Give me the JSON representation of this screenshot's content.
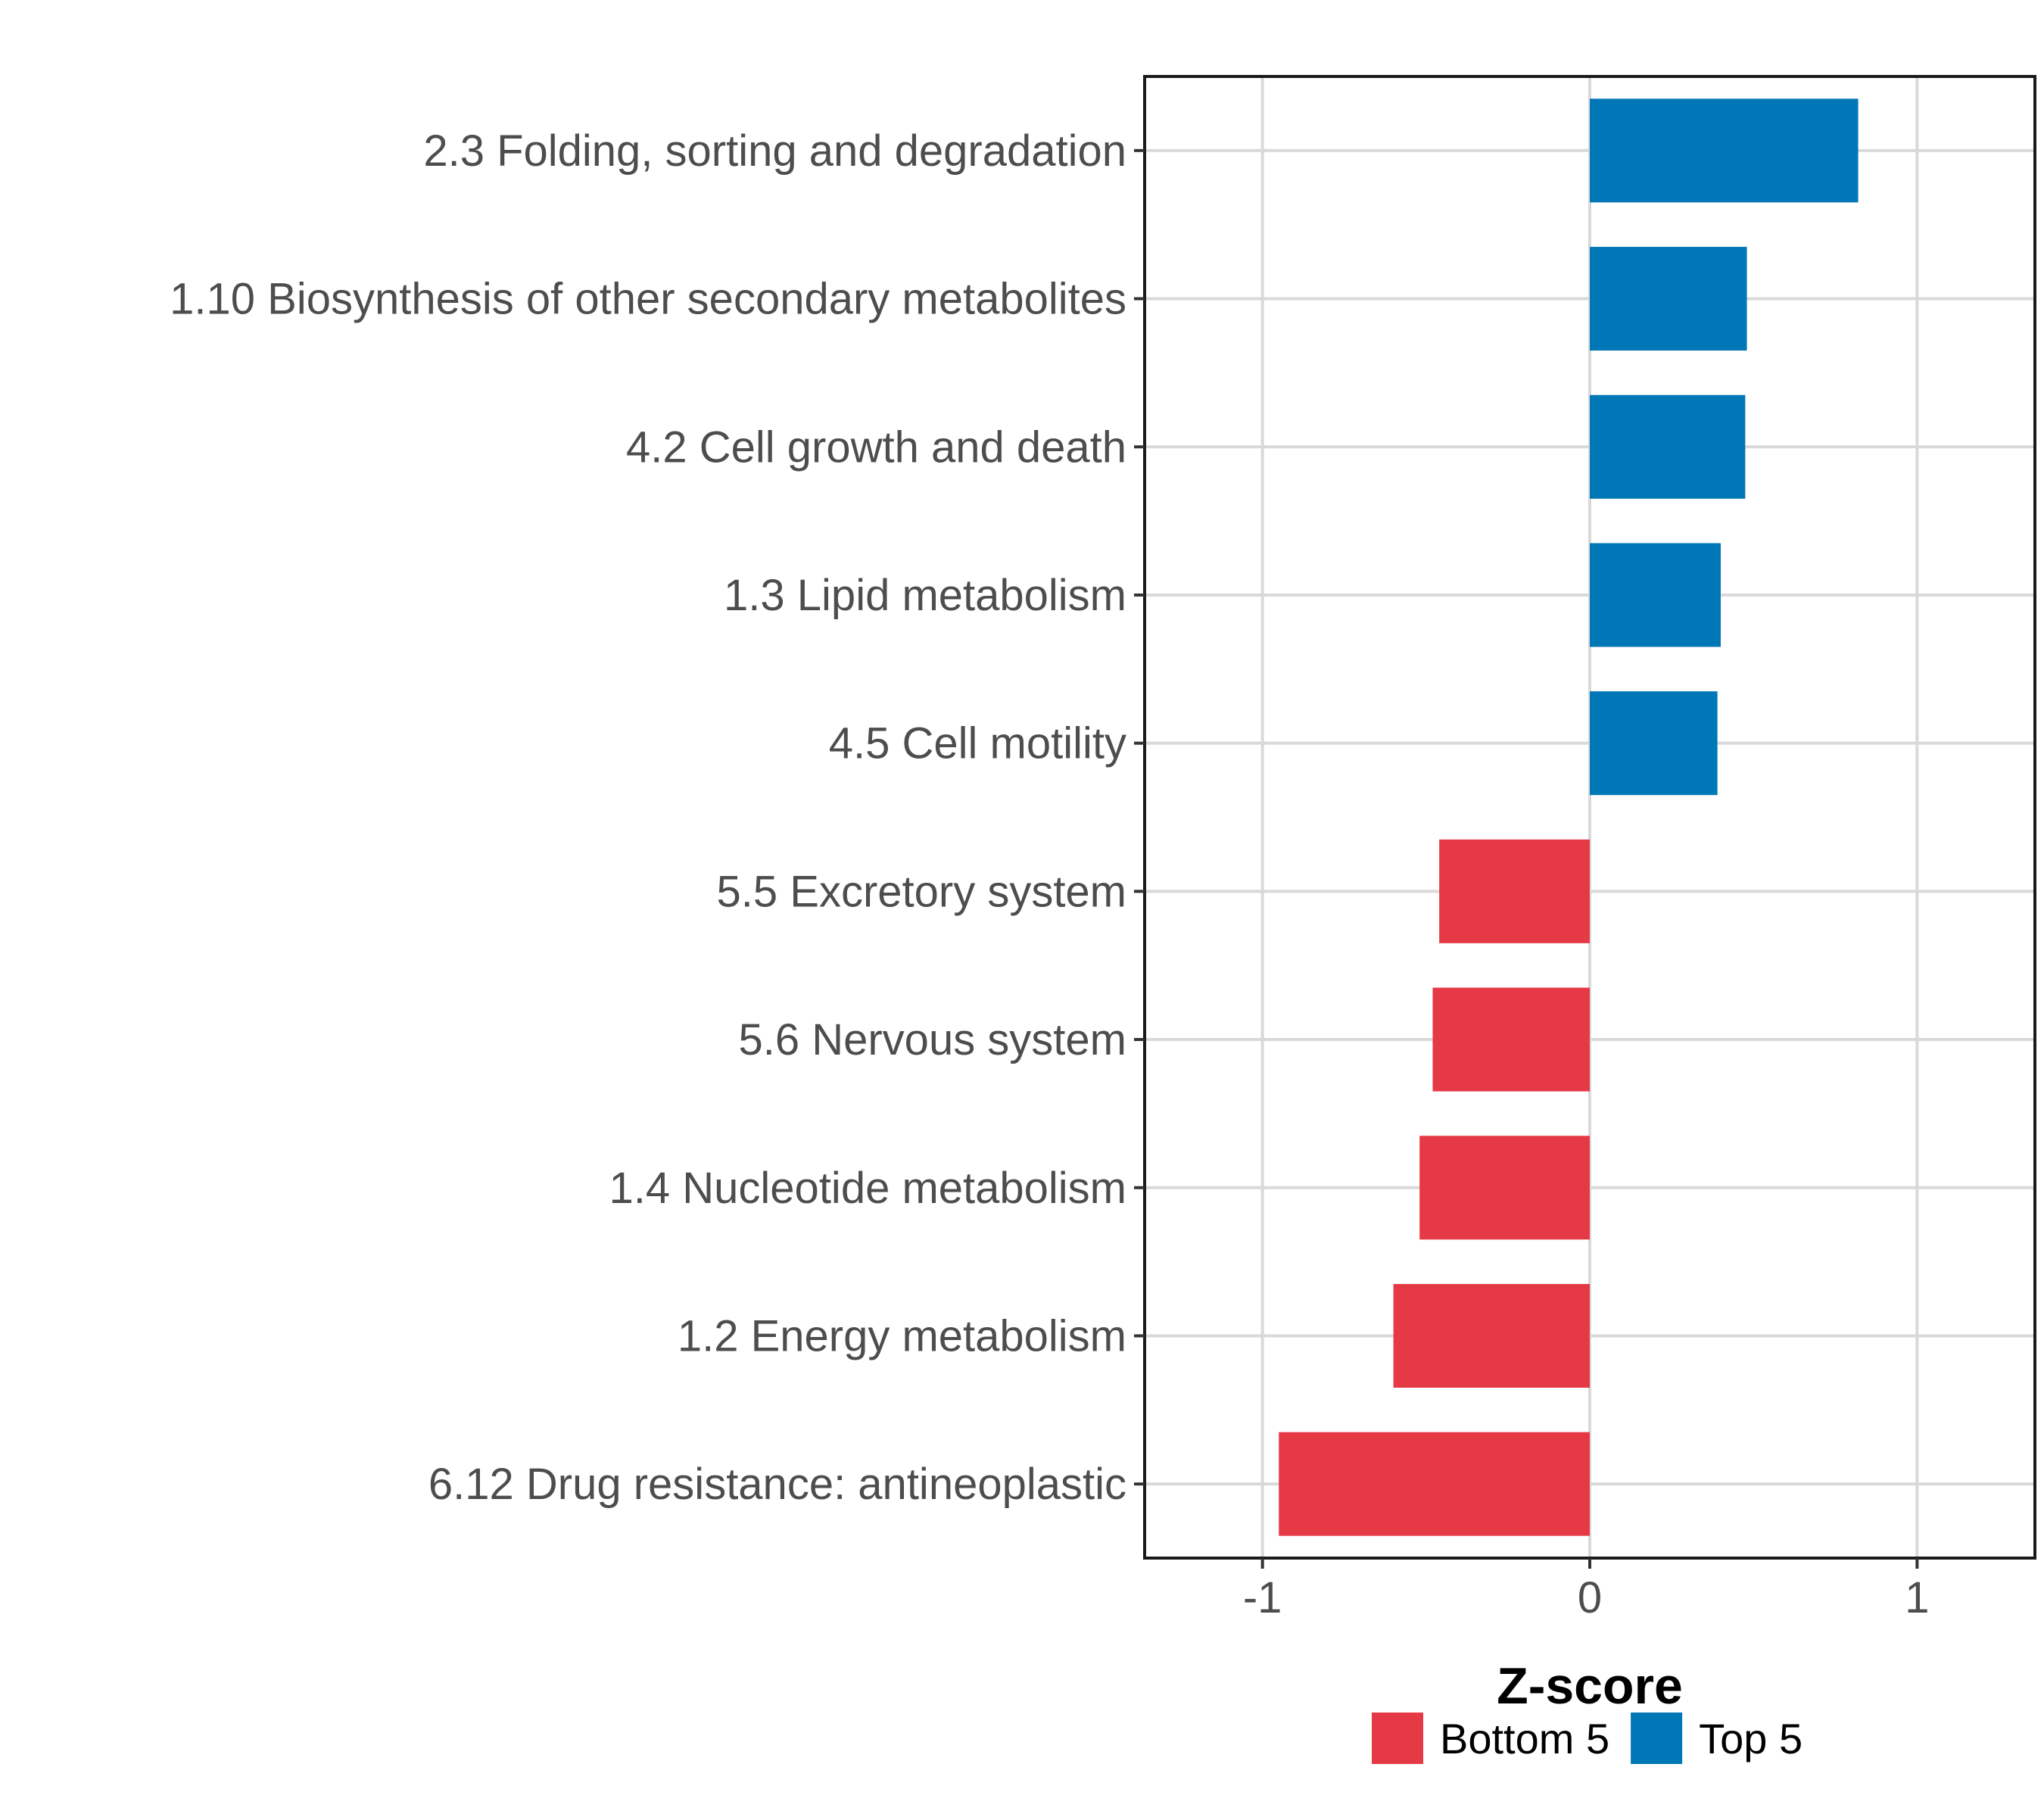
{
  "chart_data": {
    "type": "bar",
    "orientation": "horizontal",
    "title": "",
    "xlabel": "Z-score",
    "ylabel": "",
    "xlim": [
      -1.36,
      1.36
    ],
    "xticks": [
      -1,
      0,
      1
    ],
    "xtick_labels": [
      "-1",
      "0",
      "1"
    ],
    "grid": true,
    "legend_position": "bottom",
    "categories": [
      "2.3 Folding, sorting and degradation",
      "1.10 Biosynthesis of other secondary metabolites",
      "4.2 Cell growth and death",
      "1.3 Lipid metabolism",
      "4.5 Cell motility",
      "5.5 Excretory system",
      "5.6 Nervous system",
      "1.4 Nucleotide metabolism",
      "1.2 Energy metabolism",
      "6.12 Drug resistance: antineoplastic"
    ],
    "values": [
      0.82,
      0.48,
      0.475,
      0.4,
      0.39,
      -0.46,
      -0.48,
      -0.52,
      -0.6,
      -0.95
    ],
    "groups": [
      "Top 5",
      "Top 5",
      "Top 5",
      "Top 5",
      "Top 5",
      "Bottom 5",
      "Bottom 5",
      "Bottom 5",
      "Bottom 5",
      "Bottom 5"
    ],
    "legend": [
      {
        "label": "Bottom 5",
        "color": "#e63946"
      },
      {
        "label": "Top 5",
        "color": "#0077b6"
      }
    ]
  }
}
